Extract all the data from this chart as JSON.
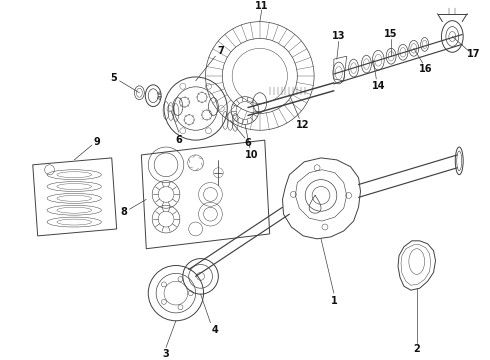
{
  "bg_color": "#ffffff",
  "line_color": "#404040",
  "label_color": "#111111",
  "fig_width": 4.9,
  "fig_height": 3.6,
  "dpi": 100,
  "coord_system": "pixel_490x360"
}
